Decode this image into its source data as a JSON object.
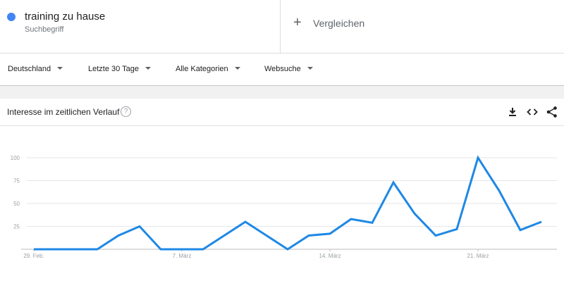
{
  "search_term": {
    "name": "training zu hause",
    "type": "Suchbegriff",
    "color": "#4285f4"
  },
  "compare": {
    "plus": "+",
    "label": "Vergleichen"
  },
  "filters": {
    "region": "Deutschland",
    "time": "Letzte 30 Tage",
    "category": "Alle Kategorien",
    "search_type": "Websuche"
  },
  "card": {
    "title": "Interesse im zeitlichen Verlauf",
    "help": "?",
    "icons": [
      "download-icon",
      "embed-icon",
      "share-icon"
    ]
  },
  "chart_data": {
    "type": "line",
    "title": "Interesse im zeitlichen Verlauf",
    "xlabel": "",
    "ylabel": "",
    "ylim": [
      0,
      100
    ],
    "yticks": [
      25,
      50,
      75,
      100
    ],
    "grid": true,
    "x_tick_labels": [
      "29. Feb.",
      "7. März",
      "14. März",
      "21. März"
    ],
    "x_tick_indices": [
      0,
      7,
      14,
      21
    ],
    "series": [
      {
        "name": "training zu hause",
        "color": "#1e88e5",
        "values": [
          0,
          0,
          0,
          0,
          15,
          25,
          0,
          0,
          0,
          15,
          30,
          15,
          0,
          15,
          17,
          33,
          29,
          73,
          39,
          15,
          22,
          100,
          64,
          21,
          30
        ]
      }
    ]
  }
}
